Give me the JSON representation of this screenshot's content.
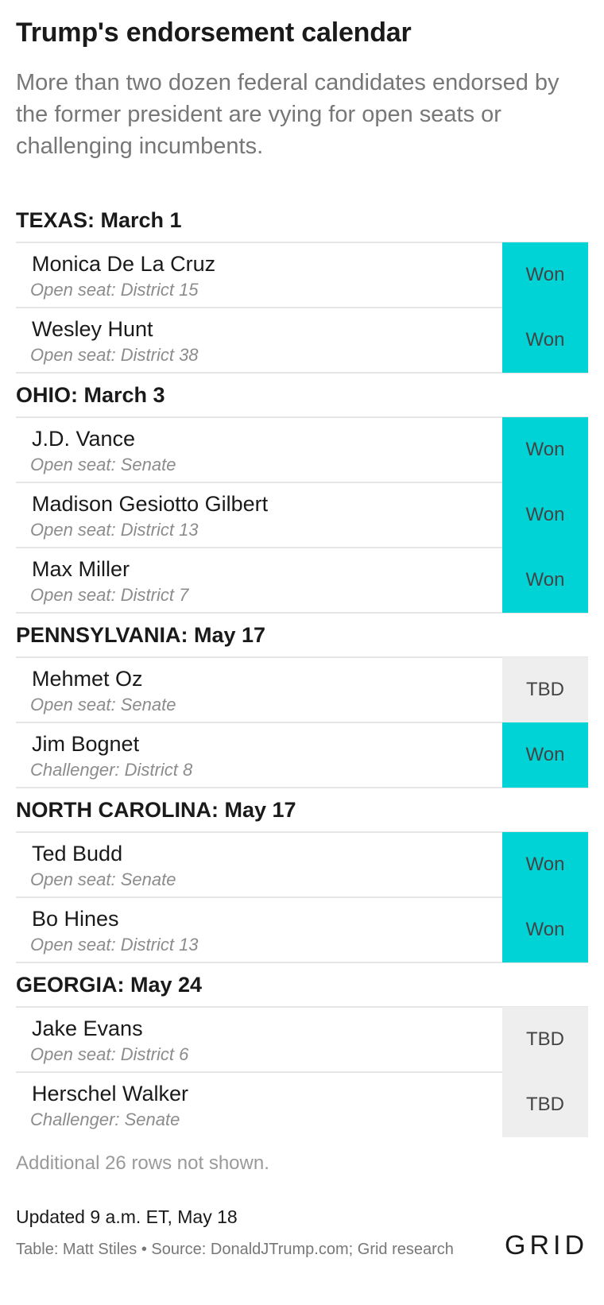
{
  "header": {
    "title": "Trump's endorsement calendar",
    "subtitle": "More than two dozen federal candidates endorsed by the former president are vying for open seats or challenging incumbents."
  },
  "chart_data": {
    "type": "table",
    "groups": [
      {
        "label": "TEXAS: March 1",
        "rows": [
          {
            "name": "Monica De La Cruz",
            "seat": "Open seat: District 15",
            "status": "Won"
          },
          {
            "name": "Wesley Hunt",
            "seat": "Open seat: District 38",
            "status": "Won"
          }
        ]
      },
      {
        "label": "OHIO: March 3",
        "rows": [
          {
            "name": "J.D. Vance",
            "seat": "Open seat: Senate",
            "status": "Won"
          },
          {
            "name": "Madison Gesiotto Gilbert",
            "seat": "Open seat: District 13",
            "status": "Won"
          },
          {
            "name": "Max Miller",
            "seat": "Open seat: District 7",
            "status": "Won"
          }
        ]
      },
      {
        "label": "PENNSYLVANIA: May 17",
        "rows": [
          {
            "name": "Mehmet Oz",
            "seat": "Open seat: Senate",
            "status": "TBD"
          },
          {
            "name": "Jim Bognet",
            "seat": "Challenger: District 8",
            "status": "Won"
          }
        ]
      },
      {
        "label": "NORTH CAROLINA: May 17",
        "rows": [
          {
            "name": "Ted Budd",
            "seat": "Open seat: Senate",
            "status": "Won"
          },
          {
            "name": "Bo Hines",
            "seat": "Open seat: District 13",
            "status": "Won"
          }
        ]
      },
      {
        "label": "GEORGIA: May 24",
        "rows": [
          {
            "name": "Jake Evans",
            "seat": "Open seat: District 6",
            "status": "TBD"
          },
          {
            "name": "Herschel Walker",
            "seat": "Challenger: Senate",
            "status": "TBD"
          }
        ]
      }
    ],
    "colors": {
      "won": "#00d3d6",
      "tbd": "#eeeeee"
    }
  },
  "footer": {
    "more_rows": "Additional 26 rows not shown.",
    "updated": "Updated 9 a.m. ET, May 18",
    "credit": "Table: Matt Stiles • Source: DonaldJTrump.com; Grid research",
    "logo": "GRID"
  }
}
